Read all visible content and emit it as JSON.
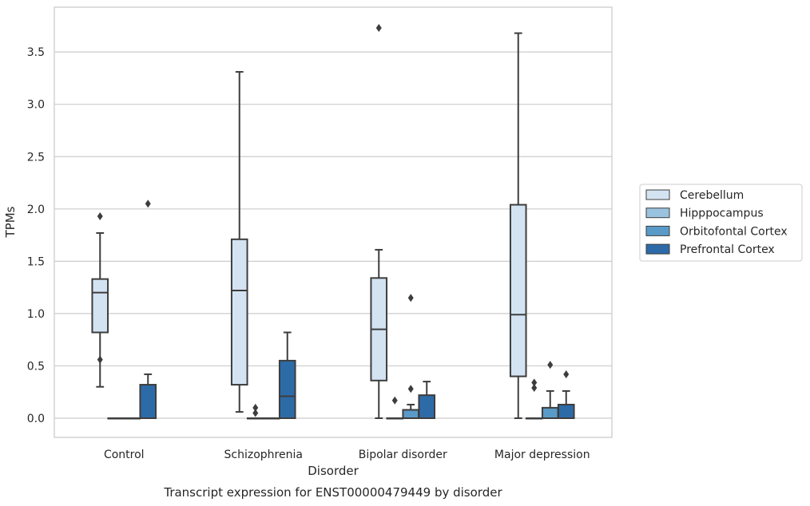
{
  "chart_data": {
    "type": "box",
    "title": "Transcript expression for ENST00000479449 by disorder",
    "xlabel": "Disorder",
    "ylabel": "TPMs",
    "ylim": [
      -0.18,
      3.9
    ],
    "yticks": [
      "0.0",
      "0.5",
      "1.0",
      "1.5",
      "2.0",
      "2.5",
      "3.0",
      "3.5"
    ],
    "ytick_values": [
      0,
      0.5,
      1.0,
      1.5,
      2.0,
      2.5,
      3.0,
      3.5
    ],
    "grid": "horizontal",
    "legend_position": "right",
    "categories": [
      "Control",
      "Schizophrenia",
      "Bipolar disorder",
      "Major depression"
    ],
    "series": [
      {
        "name": "Cerebellum",
        "color": "#d4e3f2",
        "boxes": [
          {
            "whisker_low": 0.3,
            "q1": 0.82,
            "median": 1.2,
            "q3": 1.33,
            "whisker_high": 1.77,
            "outliers": [
              1.93,
              0.56
            ]
          },
          {
            "whisker_low": 0.06,
            "q1": 0.32,
            "median": 1.22,
            "q3": 1.71,
            "whisker_high": 3.31,
            "outliers": []
          },
          {
            "whisker_low": 0.0,
            "q1": 0.36,
            "median": 0.85,
            "q3": 1.34,
            "whisker_high": 1.61,
            "outliers": [
              3.73
            ]
          },
          {
            "whisker_low": 0.0,
            "q1": 0.4,
            "median": 0.99,
            "q3": 2.04,
            "whisker_high": 3.68,
            "outliers": []
          }
        ]
      },
      {
        "name": "Hipppocampus",
        "color": "#9ac3df",
        "boxes": [
          {
            "whisker_low": 0.0,
            "q1": 0.0,
            "median": 0.0,
            "q3": 0.0,
            "whisker_high": 0.0,
            "outliers": []
          },
          {
            "whisker_low": 0.0,
            "q1": 0.0,
            "median": 0.0,
            "q3": 0.0,
            "whisker_high": 0.0,
            "outliers": [
              0.1,
              0.05
            ]
          },
          {
            "whisker_low": 0.0,
            "q1": 0.0,
            "median": 0.0,
            "q3": 0.0,
            "whisker_high": 0.0,
            "outliers": [
              0.17
            ]
          },
          {
            "whisker_low": 0.0,
            "q1": 0.0,
            "median": 0.0,
            "q3": 0.0,
            "whisker_high": 0.0,
            "outliers": [
              0.34,
              0.29
            ]
          }
        ]
      },
      {
        "name": "Orbitofontal Cortex",
        "color": "#5a9ac8",
        "boxes": [
          {
            "whisker_low": 0.0,
            "q1": 0.0,
            "median": 0.0,
            "q3": 0.0,
            "whisker_high": 0.0,
            "outliers": []
          },
          {
            "whisker_low": 0.0,
            "q1": 0.0,
            "median": 0.0,
            "q3": 0.0,
            "whisker_high": 0.0,
            "outliers": []
          },
          {
            "whisker_low": 0.0,
            "q1": 0.0,
            "median": 0.0,
            "q3": 0.08,
            "whisker_high": 0.13,
            "outliers": [
              1.15,
              0.28
            ]
          },
          {
            "whisker_low": 0.0,
            "q1": 0.0,
            "median": 0.0,
            "q3": 0.1,
            "whisker_high": 0.26,
            "outliers": [
              0.51
            ]
          }
        ]
      },
      {
        "name": "Prefrontal Cortex",
        "color": "#2d6ba8",
        "boxes": [
          {
            "whisker_low": 0.0,
            "q1": 0.0,
            "median": 0.0,
            "q3": 0.32,
            "whisker_high": 0.42,
            "outliers": [
              2.05
            ]
          },
          {
            "whisker_low": 0.0,
            "q1": 0.0,
            "median": 0.21,
            "q3": 0.55,
            "whisker_high": 0.82,
            "outliers": []
          },
          {
            "whisker_low": 0.0,
            "q1": 0.0,
            "median": 0.0,
            "q3": 0.22,
            "whisker_high": 0.35,
            "outliers": []
          },
          {
            "whisker_low": 0.0,
            "q1": 0.0,
            "median": 0.0,
            "q3": 0.13,
            "whisker_high": 0.26,
            "outliers": [
              0.42
            ]
          }
        ]
      }
    ]
  }
}
